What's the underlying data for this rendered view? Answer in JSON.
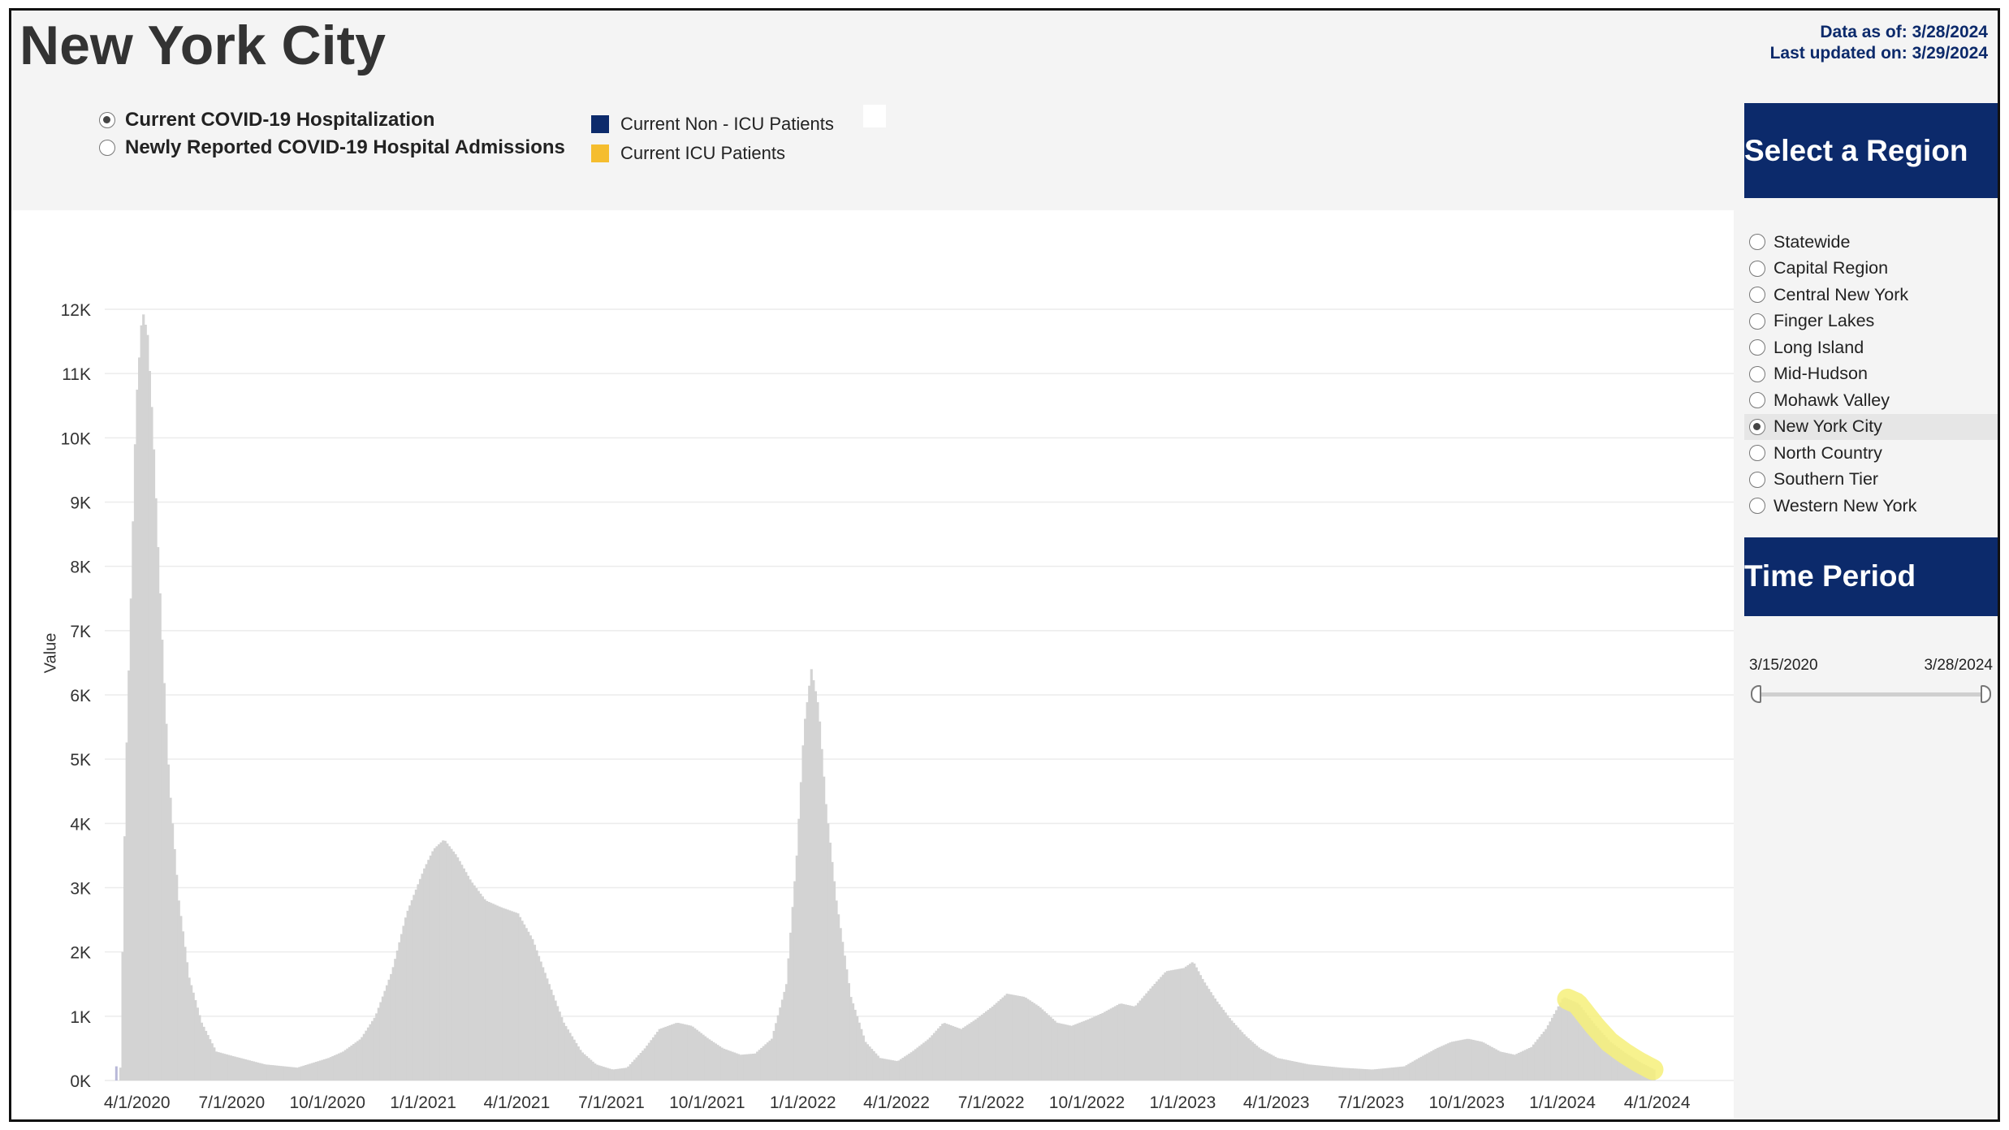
{
  "header": {
    "title": "New York City",
    "data_as_of": "Data as of: 3/28/2024",
    "last_updated": "Last updated on: 3/29/2024"
  },
  "measure_options": [
    {
      "label": "Current COVID-19 Hospitalization",
      "selected": true
    },
    {
      "label": "Newly Reported COVID-19 Hospital Admissions",
      "selected": false
    }
  ],
  "legend": [
    {
      "label": "Current Non - ICU Patients",
      "color": "#0c2a6b"
    },
    {
      "label": "Current ICU Patients",
      "color": "#f5bd2e"
    }
  ],
  "sidebar": {
    "region_title": "Select a Region",
    "regions": [
      {
        "label": "Statewide",
        "selected": false
      },
      {
        "label": "Capital Region",
        "selected": false
      },
      {
        "label": "Central New York",
        "selected": false
      },
      {
        "label": "Finger Lakes",
        "selected": false
      },
      {
        "label": "Long Island",
        "selected": false
      },
      {
        "label": "Mid-Hudson",
        "selected": false
      },
      {
        "label": "Mohawk Valley",
        "selected": false
      },
      {
        "label": "New York City",
        "selected": true
      },
      {
        "label": "North Country",
        "selected": false
      },
      {
        "label": "Southern Tier",
        "selected": false
      },
      {
        "label": "Western New York",
        "selected": false
      }
    ],
    "time_title": "Time Period",
    "time_start": "3/15/2020",
    "time_end": "3/28/2024"
  },
  "colors": {
    "brand": "#0c2a6b",
    "bars": "#d3d3d3",
    "highlight": "#f6f07a"
  },
  "chart_data": {
    "type": "area",
    "ylabel": "Value",
    "ylim": [
      0,
      12000
    ],
    "y_ticks": [
      0,
      1000,
      2000,
      3000,
      4000,
      5000,
      6000,
      7000,
      8000,
      9000,
      10000,
      11000,
      12000
    ],
    "y_tick_labels": [
      "0K",
      "1K",
      "2K",
      "3K",
      "4K",
      "5K",
      "6K",
      "7K",
      "8K",
      "9K",
      "10K",
      "11K",
      "12K"
    ],
    "x_tick_labels": [
      "4/1/2020",
      "7/1/2020",
      "10/1/2020",
      "1/1/2021",
      "4/1/2021",
      "7/1/2021",
      "10/1/2021",
      "1/1/2022",
      "4/1/2022",
      "7/1/2022",
      "10/1/2022",
      "1/1/2023",
      "4/1/2023",
      "7/1/2023",
      "10/1/2023",
      "1/1/2024",
      "4/1/2024"
    ],
    "x_range": [
      "2020-03-01",
      "2024-04-20"
    ],
    "series": [
      {
        "values": [
          [
            "2020-03-15",
            200
          ],
          [
            "2020-03-20",
            4700
          ],
          [
            "2020-03-25",
            7500
          ],
          [
            "2020-03-30",
            10500
          ],
          [
            "2020-04-05",
            12000
          ],
          [
            "2020-04-10",
            11600
          ],
          [
            "2020-04-15",
            10200
          ],
          [
            "2020-04-20",
            8300
          ],
          [
            "2020-04-25",
            6500
          ],
          [
            "2020-05-01",
            4600
          ],
          [
            "2020-05-10",
            2800
          ],
          [
            "2020-05-20",
            1600
          ],
          [
            "2020-06-01",
            900
          ],
          [
            "2020-06-15",
            450
          ],
          [
            "2020-07-01",
            380
          ],
          [
            "2020-08-01",
            250
          ],
          [
            "2020-09-01",
            200
          ],
          [
            "2020-10-01",
            350
          ],
          [
            "2020-10-15",
            450
          ],
          [
            "2020-11-01",
            650
          ],
          [
            "2020-11-15",
            1000
          ],
          [
            "2020-12-01",
            1700
          ],
          [
            "2020-12-15",
            2600
          ],
          [
            "2021-01-01",
            3300
          ],
          [
            "2021-01-10",
            3600
          ],
          [
            "2021-01-20",
            3750
          ],
          [
            "2021-02-01",
            3500
          ],
          [
            "2021-02-15",
            3100
          ],
          [
            "2021-03-01",
            2800
          ],
          [
            "2021-03-15",
            2700
          ],
          [
            "2021-04-01",
            2600
          ],
          [
            "2021-04-15",
            2200
          ],
          [
            "2021-05-01",
            1500
          ],
          [
            "2021-05-15",
            900
          ],
          [
            "2021-06-01",
            450
          ],
          [
            "2021-06-15",
            250
          ],
          [
            "2021-07-01",
            170
          ],
          [
            "2021-07-15",
            200
          ],
          [
            "2021-08-01",
            500
          ],
          [
            "2021-08-15",
            800
          ],
          [
            "2021-09-01",
            900
          ],
          [
            "2021-09-15",
            850
          ],
          [
            "2021-10-01",
            650
          ],
          [
            "2021-10-15",
            500
          ],
          [
            "2021-11-01",
            400
          ],
          [
            "2021-11-15",
            420
          ],
          [
            "2021-12-01",
            650
          ],
          [
            "2021-12-15",
            1500
          ],
          [
            "2021-12-25",
            3500
          ],
          [
            "2022-01-01",
            5500
          ],
          [
            "2022-01-08",
            6400
          ],
          [
            "2022-01-15",
            5800
          ],
          [
            "2022-01-22",
            4300
          ],
          [
            "2022-02-01",
            2800
          ],
          [
            "2022-02-15",
            1300
          ],
          [
            "2022-03-01",
            600
          ],
          [
            "2022-03-15",
            350
          ],
          [
            "2022-04-01",
            300
          ],
          [
            "2022-04-15",
            450
          ],
          [
            "2022-05-01",
            650
          ],
          [
            "2022-05-15",
            900
          ],
          [
            "2022-06-01",
            800
          ],
          [
            "2022-06-15",
            950
          ],
          [
            "2022-07-01",
            1150
          ],
          [
            "2022-07-15",
            1350
          ],
          [
            "2022-08-01",
            1300
          ],
          [
            "2022-08-15",
            1150
          ],
          [
            "2022-09-01",
            900
          ],
          [
            "2022-09-15",
            850
          ],
          [
            "2022-10-01",
            950
          ],
          [
            "2022-10-15",
            1050
          ],
          [
            "2022-11-01",
            1200
          ],
          [
            "2022-11-15",
            1150
          ],
          [
            "2022-12-01",
            1450
          ],
          [
            "2022-12-15",
            1700
          ],
          [
            "2023-01-01",
            1750
          ],
          [
            "2023-01-10",
            1850
          ],
          [
            "2023-01-20",
            1550
          ],
          [
            "2023-02-01",
            1250
          ],
          [
            "2023-02-15",
            950
          ],
          [
            "2023-03-01",
            700
          ],
          [
            "2023-03-15",
            500
          ],
          [
            "2023-04-01",
            350
          ],
          [
            "2023-05-01",
            250
          ],
          [
            "2023-06-01",
            200
          ],
          [
            "2023-07-01",
            170
          ],
          [
            "2023-08-01",
            220
          ],
          [
            "2023-08-15",
            350
          ],
          [
            "2023-09-01",
            500
          ],
          [
            "2023-09-15",
            600
          ],
          [
            "2023-10-01",
            650
          ],
          [
            "2023-10-15",
            600
          ],
          [
            "2023-11-01",
            450
          ],
          [
            "2023-11-15",
            400
          ],
          [
            "2023-12-01",
            520
          ],
          [
            "2023-12-15",
            800
          ],
          [
            "2024-01-01",
            1300
          ],
          [
            "2024-01-15",
            1200
          ],
          [
            "2024-02-01",
            850
          ],
          [
            "2024-02-15",
            600
          ],
          [
            "2024-03-01",
            420
          ],
          [
            "2024-03-15",
            280
          ],
          [
            "2024-03-28",
            170
          ]
        ]
      }
    ],
    "highlight_range": [
      "2024-01-05",
      "2024-03-28"
    ]
  }
}
